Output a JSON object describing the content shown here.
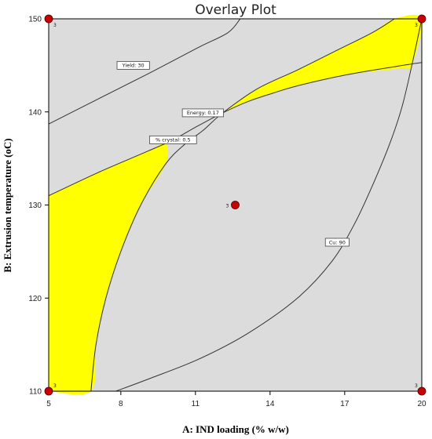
{
  "chart_data": {
    "type": "contour-overlay",
    "title": "Overlay Plot",
    "xlabel": "A: IND loading (% w/w)",
    "ylabel": "B: Extrusion temperature (oC)",
    "xlim": [
      5,
      20
    ],
    "ylim": [
      110,
      150
    ],
    "xticks": [
      {
        "value": 5,
        "label": "5"
      },
      {
        "value": 7.9,
        "label": "8"
      },
      {
        "value": 10.9,
        "label": "11"
      },
      {
        "value": 13.9,
        "label": "14"
      },
      {
        "value": 16.9,
        "label": "17"
      },
      {
        "value": 20,
        "label": "20"
      }
    ],
    "yticks": [
      110,
      120,
      130,
      140,
      150
    ],
    "colors": {
      "background": "#dcdcdc",
      "feasible_region": "#ffff00",
      "contour_line": "#333333",
      "design_point": "#cc0000",
      "frame": "#000000"
    },
    "contours": [
      {
        "name": "Yield",
        "label": "Yield: 30",
        "points": [
          [
            5,
            138.7
          ],
          [
            7,
            141.4
          ],
          [
            9,
            144.1
          ],
          [
            11,
            146.9
          ],
          [
            12.2,
            148.5
          ],
          [
            12.7,
            150
          ]
        ]
      },
      {
        "name": "Energy",
        "label": "Energy: 0.17",
        "points": [
          [
            5,
            131.0
          ],
          [
            7,
            133.5
          ],
          [
            9,
            135.8
          ],
          [
            10,
            137.0
          ],
          [
            11,
            138.5
          ],
          [
            12,
            139.9
          ],
          [
            13,
            141.1
          ],
          [
            14,
            142.0
          ],
          [
            15,
            142.8
          ],
          [
            17,
            144.0
          ],
          [
            19,
            144.9
          ],
          [
            20,
            145.3
          ]
        ]
      },
      {
        "name": "% crystal",
        "label": "% crystal: 0.5",
        "points": [
          [
            6.7,
            110
          ],
          [
            6.9,
            115
          ],
          [
            7.3,
            120
          ],
          [
            7.9,
            125
          ],
          [
            8.7,
            130
          ],
          [
            9.7,
            134.4
          ],
          [
            10.5,
            136.6
          ],
          [
            11.2,
            138.0
          ],
          [
            12.0,
            139.9
          ],
          [
            13.4,
            142.5
          ],
          [
            15,
            144.5
          ],
          [
            16.5,
            146.5
          ],
          [
            18,
            148.5
          ],
          [
            18.9,
            150
          ]
        ]
      },
      {
        "name": "Cu",
        "label": "Cu: 90",
        "points": [
          [
            7.7,
            110
          ],
          [
            9,
            111.3
          ],
          [
            11,
            113.4
          ],
          [
            13,
            116.2
          ],
          [
            15,
            120.0
          ],
          [
            16.4,
            124.0
          ],
          [
            17.3,
            128.0
          ],
          [
            18.0,
            132.0
          ],
          [
            18.7,
            136.5
          ],
          [
            19.2,
            140.5
          ],
          [
            19.6,
            145.0
          ],
          [
            20,
            150
          ]
        ]
      }
    ],
    "contour_labels": [
      {
        "contour": "Yield",
        "text": "Yield: 30",
        "x": 8.4,
        "y": 145.0
      },
      {
        "contour": "Energy",
        "text": "Energy: 0.17",
        "x": 11.2,
        "y": 139.9
      },
      {
        "contour": "% crystal",
        "text": "% crystal: 0.5",
        "x": 10.0,
        "y": 137.0
      },
      {
        "contour": "Cu",
        "text": "Cu: 90",
        "x": 16.6,
        "y": 126.0
      }
    ],
    "feasible_regions": [
      {
        "name": "lower-left",
        "points": [
          [
            5,
            131.0
          ],
          [
            7,
            133.5
          ],
          [
            9,
            135.8
          ],
          [
            9.7,
            136.6
          ],
          [
            9.7,
            134.4
          ],
          [
            8.7,
            130
          ],
          [
            7.9,
            125
          ],
          [
            7.3,
            120
          ],
          [
            6.9,
            115
          ],
          [
            6.7,
            110
          ],
          [
            5,
            110
          ]
        ]
      },
      {
        "name": "upper-right",
        "points": [
          [
            11.2,
            138.0
          ],
          [
            12.0,
            139.9
          ],
          [
            13.4,
            142.5
          ],
          [
            15,
            144.5
          ],
          [
            16.5,
            146.5
          ],
          [
            18,
            148.5
          ],
          [
            18.9,
            150
          ],
          [
            20,
            150
          ],
          [
            19.6,
            145.0
          ],
          [
            19.2,
            144.7
          ],
          [
            17,
            144.0
          ],
          [
            15,
            142.8
          ],
          [
            14,
            142.0
          ],
          [
            13,
            141.1
          ],
          [
            12,
            139.9
          ]
        ]
      }
    ],
    "design_points": [
      {
        "x": 5,
        "y": 150,
        "label": "3"
      },
      {
        "x": 20,
        "y": 150,
        "label": "3"
      },
      {
        "x": 12.5,
        "y": 130,
        "label": "3"
      },
      {
        "x": 5,
        "y": 110,
        "label": "3"
      },
      {
        "x": 20,
        "y": 110,
        "label": "3"
      }
    ],
    "grid": false,
    "legend": "none"
  }
}
